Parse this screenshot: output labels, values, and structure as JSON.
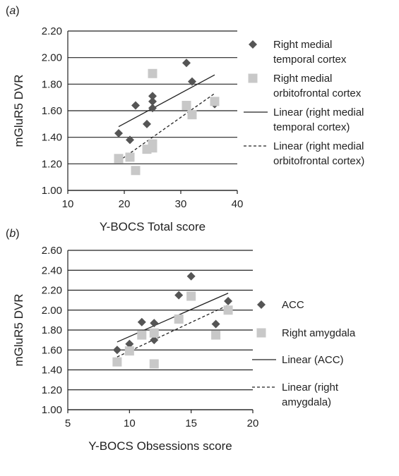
{
  "chart_data": [
    {
      "type": "scatter",
      "panel_label": "(a)",
      "xlabel": "Y-BOCS Total score",
      "ylabel": "mGluR5 DVR",
      "xlim": [
        10,
        40
      ],
      "ylim": [
        1.0,
        2.2
      ],
      "xticks": [
        "10",
        "20",
        "30",
        "40"
      ],
      "yticks": [
        "1.00",
        "1.20",
        "1.40",
        "1.60",
        "1.80",
        "2.00",
        "2.20"
      ],
      "grid": "horizontal",
      "legend_position": "right",
      "series": [
        {
          "name": "Right medial temporal cortex",
          "marker": "diamond",
          "color": "#555555",
          "points": [
            [
              19,
              1.43
            ],
            [
              21,
              1.38
            ],
            [
              22,
              1.64
            ],
            [
              24,
              1.5
            ],
            [
              25,
              1.62
            ],
            [
              25,
              1.67
            ],
            [
              25,
              1.71
            ],
            [
              31,
              1.96
            ],
            [
              32,
              1.82
            ],
            [
              36,
              1.65
            ]
          ]
        },
        {
          "name": "Right medial orbitofrontal cortex",
          "marker": "square",
          "color": "#c8c8c8",
          "points": [
            [
              19,
              1.24
            ],
            [
              21,
              1.25
            ],
            [
              22,
              1.15
            ],
            [
              24,
              1.31
            ],
            [
              25,
              1.32
            ],
            [
              25,
              1.35
            ],
            [
              25,
              1.88
            ],
            [
              31,
              1.64
            ],
            [
              32,
              1.57
            ],
            [
              36,
              1.67
            ]
          ]
        },
        {
          "name": "Linear (right medial temporal cortex)",
          "type": "trendline",
          "style": "solid",
          "color": "#222222",
          "points": [
            [
              19,
              1.48
            ],
            [
              36,
              1.87
            ]
          ]
        },
        {
          "name": "Linear (right medial orbitofrontal cortex)",
          "type": "trendline",
          "style": "dashed",
          "color": "#222222",
          "points": [
            [
              19,
              1.22
            ],
            [
              36,
              1.73
            ]
          ]
        }
      ],
      "legend": [
        {
          "lines": [
            "Right medial",
            "temporal cortex"
          ],
          "symbol": "diamond"
        },
        {
          "lines": [
            "Right medial",
            "orbitofrontal cortex"
          ],
          "symbol": "square"
        },
        {
          "lines": [
            "Linear (right medial",
            "temporal cortex)"
          ],
          "symbol": "solid"
        },
        {
          "lines": [
            "Linear (right medial",
            "orbitofrontal cortex)"
          ],
          "symbol": "dashed"
        }
      ]
    },
    {
      "type": "scatter",
      "panel_label": "(b)",
      "xlabel": "Y-BOCS Obsessions score",
      "ylabel": "mGluR5 DVR",
      "xlim": [
        5,
        20
      ],
      "ylim": [
        1.0,
        2.6
      ],
      "xticks": [
        "5",
        "10",
        "15",
        "20"
      ],
      "yticks": [
        "1.00",
        "1.20",
        "1.40",
        "1.60",
        "1.80",
        "2.00",
        "2.20",
        "2.40",
        "2.60"
      ],
      "grid": "horizontal",
      "legend_position": "right",
      "series": [
        {
          "name": "ACC",
          "marker": "diamond",
          "color": "#555555",
          "points": [
            [
              9,
              1.6
            ],
            [
              10,
              1.66
            ],
            [
              11,
              1.88
            ],
            [
              12,
              1.87
            ],
            [
              12,
              1.7
            ],
            [
              14,
              2.15
            ],
            [
              15,
              2.34
            ],
            [
              17,
              1.86
            ],
            [
              18,
              2.09
            ]
          ]
        },
        {
          "name": "Right amygdala",
          "marker": "square",
          "color": "#c8c8c8",
          "points": [
            [
              9,
              1.48
            ],
            [
              10,
              1.59
            ],
            [
              11,
              1.75
            ],
            [
              12,
              1.77
            ],
            [
              12,
              1.46
            ],
            [
              14,
              1.91
            ],
            [
              15,
              2.14
            ],
            [
              17,
              1.75
            ],
            [
              18,
              2.0
            ]
          ]
        },
        {
          "name": "Linear (ACC)",
          "type": "trendline",
          "style": "solid",
          "color": "#222222",
          "points": [
            [
              9,
              1.68
            ],
            [
              18,
              2.17
            ]
          ]
        },
        {
          "name": "Linear (right amygdala)",
          "type": "trendline",
          "style": "dashed",
          "color": "#222222",
          "points": [
            [
              9,
              1.53
            ],
            [
              18,
              2.05
            ]
          ]
        }
      ],
      "legend": [
        {
          "lines": [
            "ACC"
          ],
          "symbol": "diamond"
        },
        {
          "lines": [
            "Right amygdala"
          ],
          "symbol": "square"
        },
        {
          "lines": [
            "Linear (ACC)"
          ],
          "symbol": "solid"
        },
        {
          "lines": [
            "Linear (right",
            "amygdala)"
          ],
          "symbol": "dashed"
        }
      ]
    }
  ]
}
